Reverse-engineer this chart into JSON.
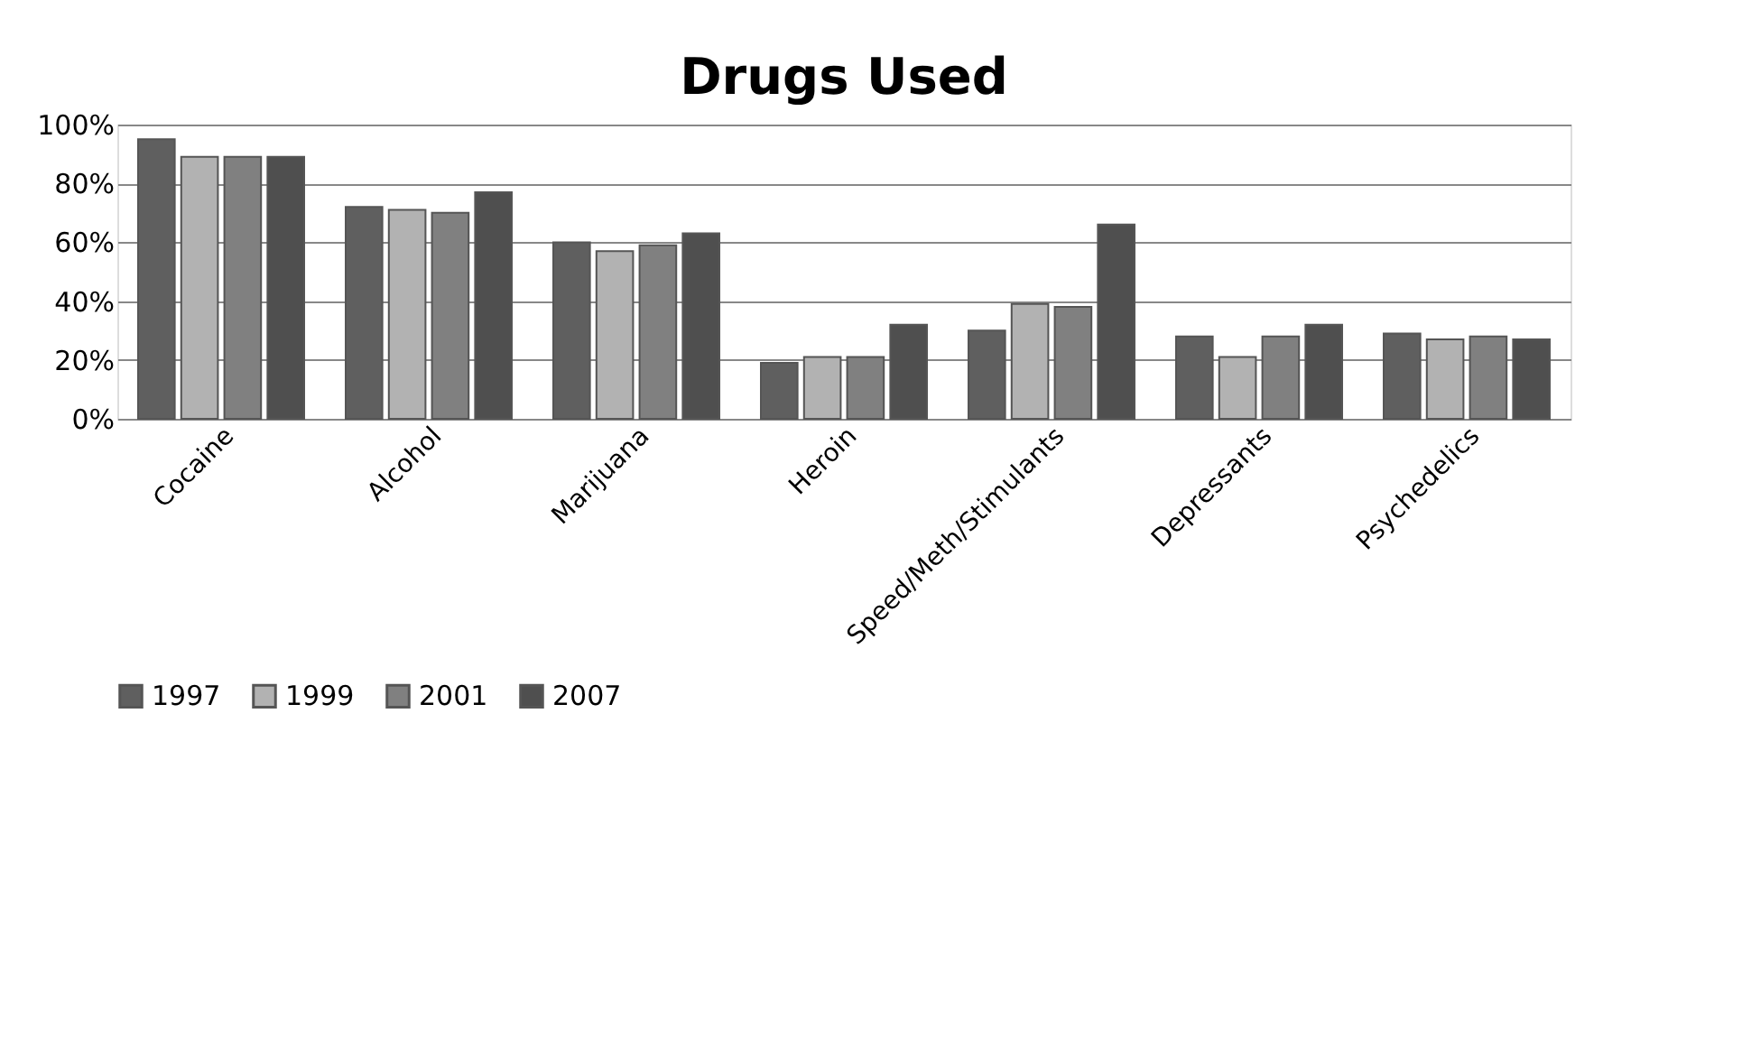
{
  "chart_data": {
    "type": "bar",
    "title": "Drugs Used",
    "categories": [
      "Cocaine",
      "Alcohol",
      "Marijuana",
      "Heroin",
      "Speed/Meth/Stimulants",
      "Depressants",
      "Psychedelics"
    ],
    "series": [
      {
        "name": "1997",
        "color": "#5f5f5f",
        "values": [
          95,
          72,
          60,
          19,
          30,
          28,
          29
        ]
      },
      {
        "name": "1999",
        "color": "#b2b2b2",
        "values": [
          89,
          71,
          57,
          21,
          39,
          21,
          27
        ]
      },
      {
        "name": "2001",
        "color": "#808080",
        "values": [
          89,
          70,
          59,
          21,
          38,
          28,
          28
        ]
      },
      {
        "name": "2007",
        "color": "#4f4f4f",
        "values": [
          89,
          77,
          63,
          32,
          66,
          32,
          27
        ]
      }
    ],
    "ylim": [
      0,
      100
    ],
    "yticks": [
      {
        "value": 0,
        "label": "0%"
      },
      {
        "value": 20,
        "label": "20%"
      },
      {
        "value": 40,
        "label": "40%"
      },
      {
        "value": 60,
        "label": "60%"
      },
      {
        "value": 80,
        "label": "80%"
      },
      {
        "value": 100,
        "label": "100%"
      }
    ],
    "grid": "y",
    "legend": "bottom"
  }
}
